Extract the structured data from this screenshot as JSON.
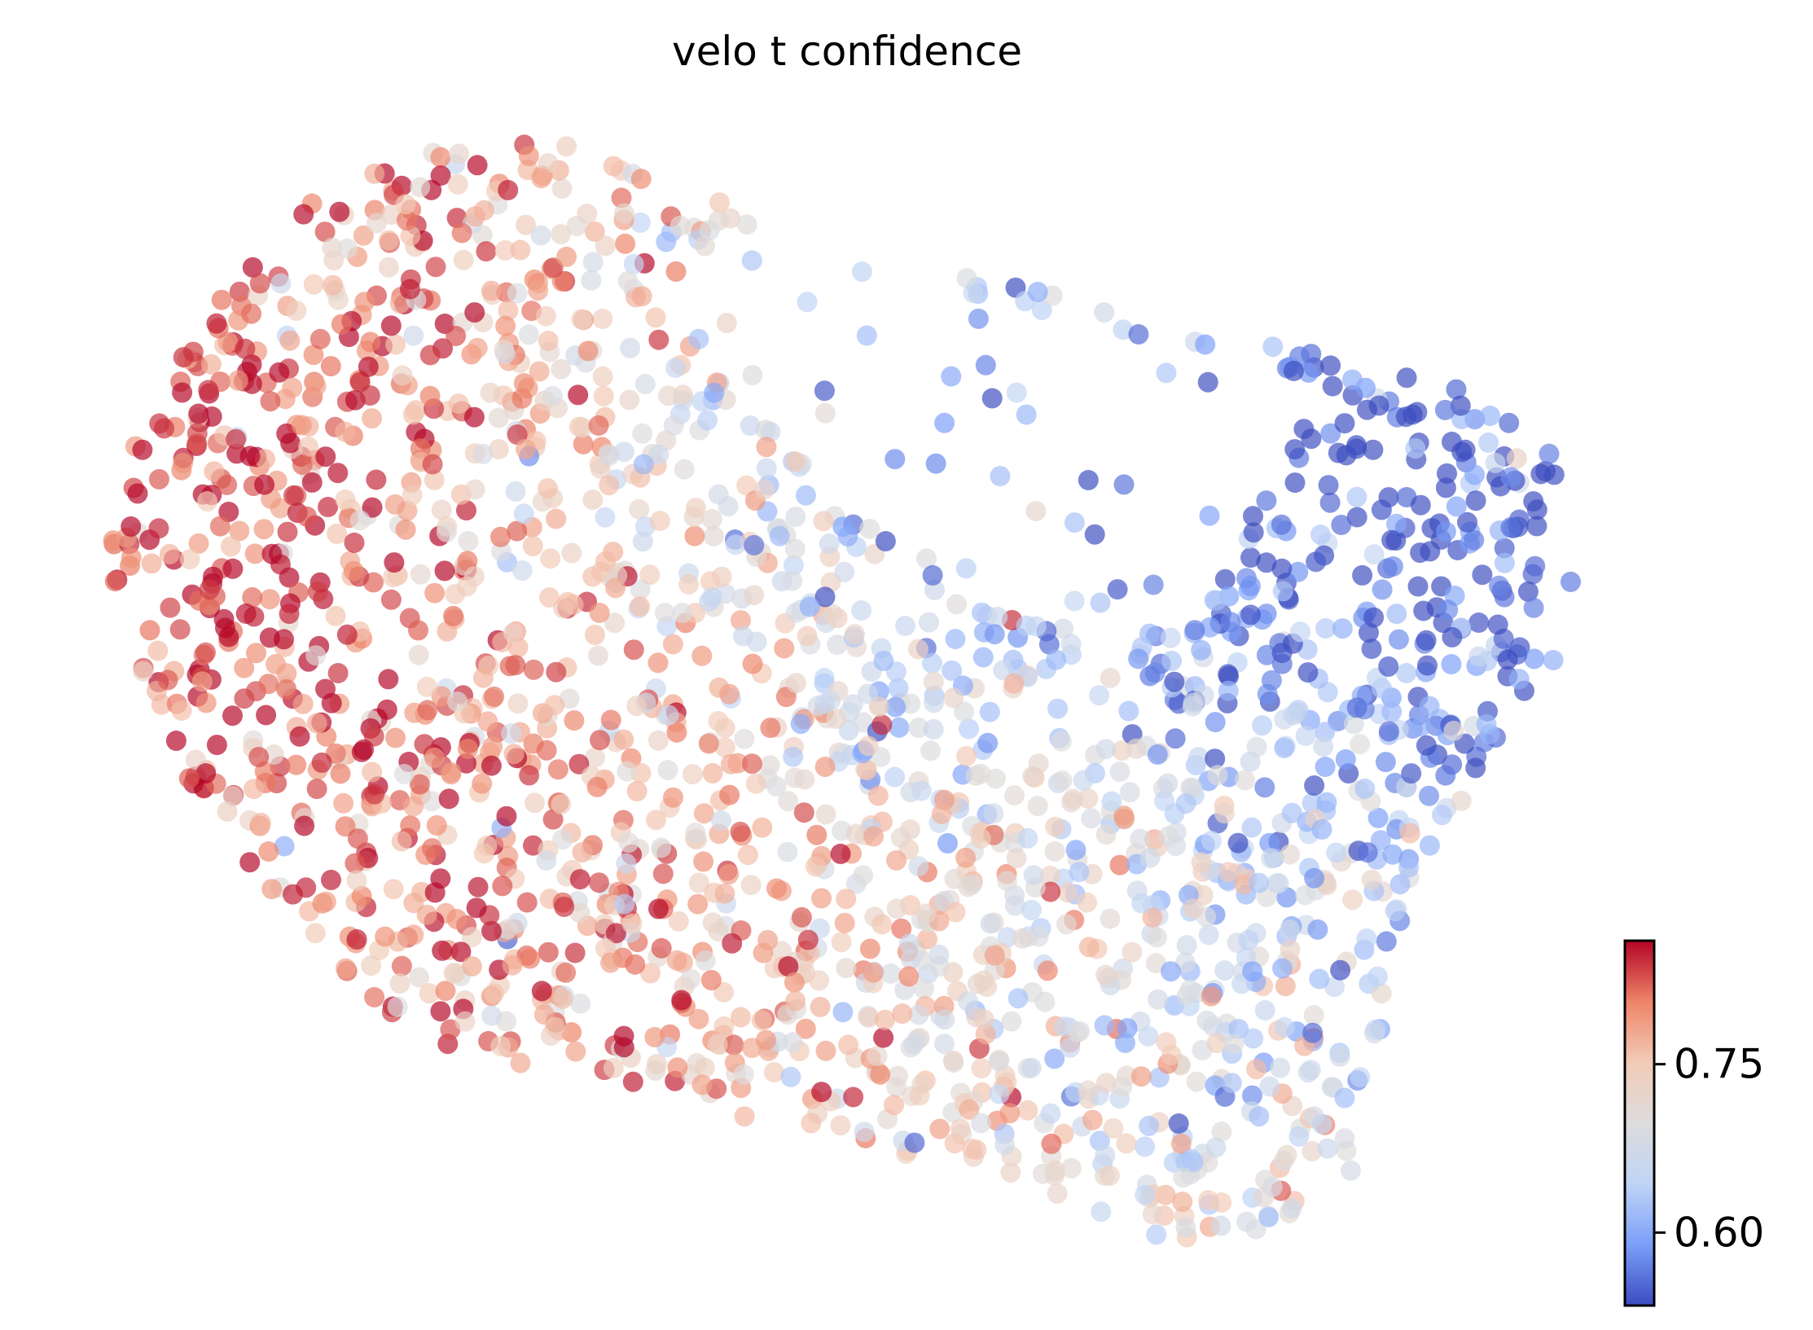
{
  "chart_data": {
    "type": "scatter",
    "title": "velo t confidence",
    "xlabel": "",
    "ylabel": "",
    "axes_visible": false,
    "grid": false,
    "colormap": "coolwarm",
    "colormap_stops": [
      "#3b4cc0",
      "#7b9ff9",
      "#c0d4f5",
      "#dddcdc",
      "#f2cbb7",
      "#ee8468",
      "#b40426"
    ],
    "colorbar": {
      "range": [
        0.535,
        0.86
      ],
      "ticks": [
        0.6,
        0.75
      ],
      "tick_labels": [
        "0.60",
        "0.75"
      ],
      "placement": "right"
    },
    "point_count": 2200,
    "point_opacity": 0.68,
    "embedding_region": "irregular blob, high confidence (red) concentrated at left, low confidence (blue) in upper-right interior and along right edge"
  }
}
